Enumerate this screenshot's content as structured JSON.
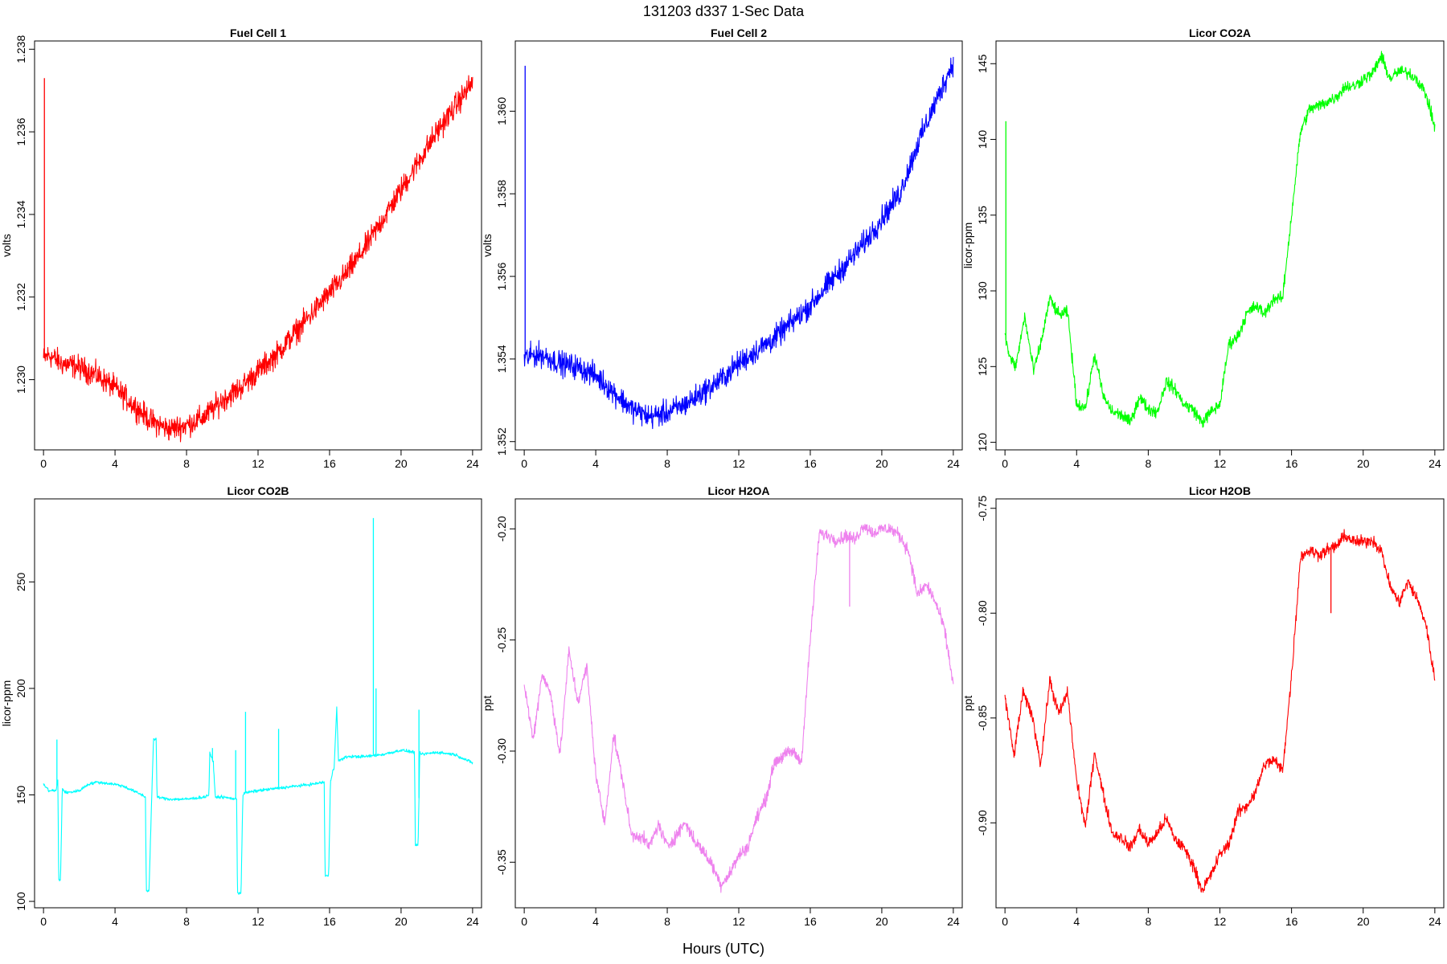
{
  "figure": {
    "title": "131203   d337   1-Sec Data",
    "xlabel": "Hours (UTC)"
  },
  "chart_data": [
    {
      "type": "line",
      "title": "Fuel Cell 1",
      "ylabel": "volts",
      "color": "#ff0000",
      "xlim": [
        -0.5,
        24.5
      ],
      "ylim": [
        1.2283,
        1.2382
      ],
      "xticks": [
        0,
        4,
        8,
        12,
        16,
        20,
        24
      ],
      "yticks": [
        1.23,
        1.232,
        1.234,
        1.236,
        1.238
      ],
      "ytick_labels": [
        "1.230",
        "1.232",
        "1.234",
        "1.236",
        "1.238"
      ],
      "noise": 0.00025,
      "spikes": [
        {
          "x": 0.05,
          "y": 1.2373
        }
      ],
      "series": [
        {
          "x": [
            0,
            0.3,
            1,
            2,
            3,
            4,
            5,
            6,
            7,
            8,
            9,
            10,
            11,
            12,
            13,
            14,
            15,
            16,
            17,
            18,
            19,
            20,
            21,
            22,
            23,
            24
          ],
          "values": [
            1.2305,
            1.2306,
            1.2304,
            1.2303,
            1.2301,
            1.2298,
            1.2294,
            1.229,
            1.2288,
            1.2289,
            1.2291,
            1.2295,
            1.2298,
            1.2302,
            1.2306,
            1.2311,
            1.2316,
            1.2321,
            1.2326,
            1.2332,
            1.2339,
            1.2346,
            1.2353,
            1.236,
            1.2366,
            1.2372
          ]
        }
      ]
    },
    {
      "type": "line",
      "title": "Fuel Cell 2",
      "ylabel": "volts",
      "color": "#0000ff",
      "xlim": [
        -0.5,
        24.5
      ],
      "ylim": [
        1.3518,
        1.3617
      ],
      "xticks": [
        0,
        4,
        8,
        12,
        16,
        20,
        24
      ],
      "yticks": [
        1.352,
        1.354,
        1.356,
        1.358,
        1.36
      ],
      "ytick_labels": [
        "1.352",
        "1.354",
        "1.356",
        "1.358",
        "1.360"
      ],
      "noise": 0.00025,
      "spikes": [
        {
          "x": 0.05,
          "y": 1.3611
        }
      ],
      "series": [
        {
          "x": [
            0,
            0.5,
            1,
            2,
            3,
            4,
            5,
            6,
            7,
            8,
            9,
            10,
            11,
            12,
            13,
            14,
            15,
            16,
            17,
            18,
            19,
            20,
            21,
            22,
            23,
            24
          ],
          "values": [
            1.354,
            1.3541,
            1.3541,
            1.3539,
            1.3538,
            1.3536,
            1.3532,
            1.3528,
            1.3526,
            1.3527,
            1.3529,
            1.3532,
            1.3535,
            1.3539,
            1.3542,
            1.3545,
            1.3549,
            1.3553,
            1.3558,
            1.3563,
            1.3568,
            1.3574,
            1.358,
            1.3592,
            1.3602,
            1.3612
          ]
        }
      ]
    },
    {
      "type": "line",
      "title": "Licor CO2A",
      "ylabel": "licor-ppm",
      "color": "#00ff00",
      "xlim": [
        -0.5,
        24.5
      ],
      "ylim": [
        119.5,
        146.5
      ],
      "xticks": [
        0,
        4,
        8,
        12,
        16,
        20,
        24
      ],
      "yticks": [
        120,
        125,
        130,
        135,
        140,
        145
      ],
      "ytick_labels": [
        "120",
        "125",
        "130",
        "135",
        "140",
        "145"
      ],
      "noise": 0.35,
      "spikes": [
        {
          "x": 0.05,
          "y": 141.2
        }
      ],
      "series": [
        {
          "x": [
            0,
            0.3,
            0.6,
            1.1,
            1.6,
            2,
            2.5,
            3,
            3.5,
            4,
            4.5,
            5,
            5.5,
            6,
            6.5,
            7,
            7.5,
            8,
            8.5,
            9,
            9.5,
            10,
            10.5,
            11,
            11.5,
            12,
            12.5,
            13,
            13.5,
            14,
            14.5,
            15,
            15.5,
            16,
            16.5,
            17,
            17.5,
            18,
            18.5,
            19,
            19.5,
            20,
            20.5,
            21,
            21.5,
            22,
            22.5,
            23,
            23.5,
            24
          ],
          "values": [
            127,
            125.5,
            125,
            128.3,
            124.7,
            126.5,
            129.5,
            128.4,
            128.6,
            122.5,
            122.3,
            125.8,
            123,
            122,
            121.8,
            121.3,
            123,
            122.2,
            122,
            124,
            123.5,
            122.5,
            122.2,
            121.3,
            122,
            122.5,
            126.5,
            127,
            128.5,
            129,
            128.5,
            129.5,
            129.5,
            135,
            140.5,
            142,
            142.2,
            142.5,
            142.8,
            143.5,
            143.5,
            144,
            144.3,
            145.5,
            144,
            144.5,
            144.4,
            144,
            143,
            140.8
          ]
        }
      ]
    },
    {
      "type": "line",
      "title": "Licor CO2B",
      "ylabel": "licor-ppm",
      "color": "#00ffff",
      "xlim": [
        -0.5,
        24.5
      ],
      "ylim": [
        97,
        289
      ],
      "xticks": [
        0,
        4,
        8,
        12,
        16,
        20,
        24
      ],
      "yticks": [
        100,
        150,
        200,
        250
      ],
      "ytick_labels": [
        "100",
        "150",
        "200",
        "250"
      ],
      "noise": 0.6,
      "series": [
        {
          "x": [
            0,
            0.3,
            0.7,
            0.8,
            0.85,
            0.95,
            1.05,
            1.12,
            1.3,
            2,
            2.5,
            3,
            4,
            4.5,
            5,
            5.5,
            5.7,
            5.75,
            5.9,
            6.05,
            6.15,
            6.3,
            6.35,
            7,
            8,
            9,
            9.25,
            9.3,
            9.5,
            9.6,
            9.65,
            10,
            10.8,
            10.85,
            11.05,
            11.15,
            11.3,
            12,
            13,
            14,
            15,
            15.7,
            15.75,
            15.95,
            16.05,
            16.2,
            16.25,
            16.4,
            16.5,
            17,
            18,
            19,
            20,
            20.75,
            20.8,
            20.95,
            21.05,
            21.1,
            22,
            23,
            24
          ],
          "values": [
            155,
            152,
            152,
            157,
            110,
            110,
            153,
            152,
            151,
            152,
            155,
            156,
            155,
            154,
            152,
            150,
            149,
            105,
            105,
            148,
            176,
            176,
            149,
            148,
            148,
            149,
            150,
            170,
            165,
            150,
            149,
            149,
            148,
            104,
            104,
            150,
            151,
            152,
            153,
            154,
            155,
            156,
            112,
            112,
            156,
            162,
            162,
            191,
            166,
            168,
            168,
            169,
            171,
            170,
            126,
            126,
            171,
            169,
            170,
            169,
            165
          ]
        }
      ],
      "spikes": [
        {
          "x": 0.75,
          "y": 176
        },
        {
          "x": 9.45,
          "y": 172
        },
        {
          "x": 10.75,
          "y": 171
        },
        {
          "x": 11.3,
          "y": 189
        },
        {
          "x": 13.15,
          "y": 181
        },
        {
          "x": 18.45,
          "y": 280
        },
        {
          "x": 18.6,
          "y": 200
        },
        {
          "x": 21.0,
          "y": 190
        }
      ]
    },
    {
      "type": "line",
      "title": "Licor H2OA",
      "ylabel": "ppt",
      "color": "#ee82ee",
      "xlim": [
        -0.5,
        24.5
      ],
      "ylim": [
        -0.3705,
        -0.1865
      ],
      "xticks": [
        0,
        4,
        8,
        12,
        16,
        20,
        24
      ],
      "yticks": [
        -0.35,
        -0.3,
        -0.25,
        -0.2
      ],
      "ytick_labels": [
        "-0.35",
        "-0.30",
        "-0.25",
        "-0.20"
      ],
      "noise": 0.0025,
      "series": [
        {
          "x": [
            0,
            0.5,
            1,
            1.5,
            2,
            2.5,
            3,
            3.5,
            4,
            4.5,
            5,
            5.5,
            6,
            6.5,
            7,
            7.5,
            8,
            8.5,
            9,
            9.5,
            10,
            10.5,
            11,
            11.5,
            12,
            12.5,
            13,
            13.5,
            14,
            14.5,
            15,
            15.5,
            16,
            16.5,
            17,
            17.5,
            18,
            18.5,
            19,
            19.5,
            20,
            20.5,
            21,
            21.5,
            22,
            22.5,
            23,
            23.5,
            24
          ],
          "values": [
            -0.27,
            -0.295,
            -0.265,
            -0.275,
            -0.302,
            -0.255,
            -0.278,
            -0.262,
            -0.31,
            -0.333,
            -0.293,
            -0.313,
            -0.338,
            -0.338,
            -0.343,
            -0.333,
            -0.343,
            -0.338,
            -0.332,
            -0.34,
            -0.345,
            -0.351,
            -0.36,
            -0.355,
            -0.347,
            -0.343,
            -0.33,
            -0.322,
            -0.305,
            -0.302,
            -0.3,
            -0.305,
            -0.25,
            -0.202,
            -0.203,
            -0.205,
            -0.203,
            -0.205,
            -0.198,
            -0.202,
            -0.2,
            -0.2,
            -0.203,
            -0.21,
            -0.23,
            -0.225,
            -0.233,
            -0.245,
            -0.27
          ]
        }
      ],
      "spikes": [
        {
          "x": 18.2,
          "y": -0.235
        }
      ]
    },
    {
      "type": "line",
      "title": "Licor H2OB",
      "ylabel": "ppt",
      "color": "#ff0000",
      "xlim": [
        -0.5,
        24.5
      ],
      "ylim": [
        -0.9405,
        -0.7455
      ],
      "xticks": [
        0,
        4,
        8,
        12,
        16,
        20,
        24
      ],
      "yticks": [
        -0.9,
        -0.85,
        -0.8,
        -0.75
      ],
      "ytick_labels": [
        "-0.90",
        "-0.85",
        "-0.80",
        "-0.75"
      ],
      "noise": 0.0025,
      "series": [
        {
          "x": [
            0,
            0.5,
            1,
            1.5,
            2,
            2.5,
            3,
            3.5,
            4,
            4.5,
            5,
            5.5,
            6,
            6.5,
            7,
            7.5,
            8,
            8.5,
            9,
            9.5,
            10,
            10.5,
            11,
            11.5,
            12,
            12.5,
            13,
            13.5,
            14,
            14.5,
            15,
            15.5,
            16,
            16.5,
            17,
            17.5,
            18,
            18.5,
            19,
            19.5,
            20,
            20.5,
            21,
            21.5,
            22,
            22.5,
            23,
            23.5,
            24
          ],
          "values": [
            -0.84,
            -0.868,
            -0.838,
            -0.848,
            -0.872,
            -0.832,
            -0.848,
            -0.838,
            -0.88,
            -0.902,
            -0.866,
            -0.887,
            -0.905,
            -0.907,
            -0.912,
            -0.903,
            -0.91,
            -0.905,
            -0.898,
            -0.908,
            -0.912,
            -0.92,
            -0.932,
            -0.925,
            -0.915,
            -0.91,
            -0.895,
            -0.892,
            -0.885,
            -0.872,
            -0.87,
            -0.875,
            -0.83,
            -0.773,
            -0.77,
            -0.772,
            -0.77,
            -0.768,
            -0.763,
            -0.766,
            -0.766,
            -0.765,
            -0.77,
            -0.787,
            -0.795,
            -0.785,
            -0.793,
            -0.805,
            -0.832
          ]
        }
      ],
      "spikes": [
        {
          "x": 18.2,
          "y": -0.8
        }
      ]
    }
  ]
}
